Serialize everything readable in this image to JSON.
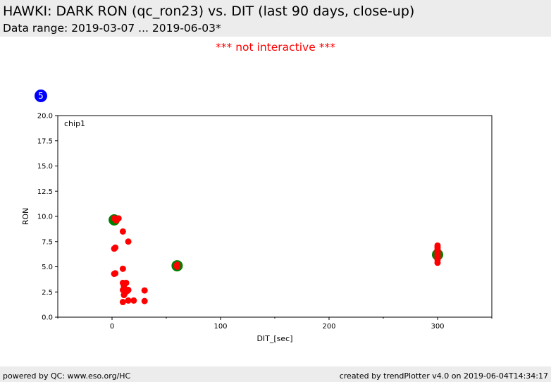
{
  "header": {
    "title": "HAWKI: DARK RON (qc_ron23) vs. DIT (last 90 days, close-up)",
    "subtitle": "Data range: 2019-03-07 ... 2019-06-03*"
  },
  "notice": "*** not interactive ***",
  "badge": "5",
  "footer": {
    "left": "powered by QC: www.eso.org/HC",
    "right": "created by trendPlotter v4.0 on 2019-06-04T14:34:17"
  },
  "colors": {
    "points": "#ff0000",
    "averages": "#008000",
    "badge": "#0000ff",
    "notice": "#ff0000"
  },
  "chart_data": {
    "type": "scatter",
    "annotation": "chip1",
    "xlabel": "DIT_[sec]",
    "ylabel": "RON",
    "xlim": [
      -50,
      350
    ],
    "ylim": [
      0,
      20
    ],
    "x_ticks": [
      0,
      100,
      200,
      300
    ],
    "x_ticks_minor": [
      -50,
      50,
      150,
      250,
      350
    ],
    "y_ticks": [
      0.0,
      2.5,
      5.0,
      7.5,
      10.0,
      12.5,
      15.0,
      17.5,
      20.0
    ],
    "grid": false,
    "series": [
      {
        "marker": "red-dot",
        "points": [
          {
            "x": 2,
            "y": 9.8
          },
          {
            "x": 4,
            "y": 9.6
          },
          {
            "x": 6,
            "y": 9.8
          },
          {
            "x": 2,
            "y": 6.8
          },
          {
            "x": 3,
            "y": 6.9
          },
          {
            "x": 2,
            "y": 4.3
          },
          {
            "x": 3,
            "y": 4.35
          },
          {
            "x": 10,
            "y": 8.5
          },
          {
            "x": 15,
            "y": 7.5
          },
          {
            "x": 10,
            "y": 4.8
          },
          {
            "x": 10,
            "y": 3.4
          },
          {
            "x": 13,
            "y": 3.4
          },
          {
            "x": 11,
            "y": 3.1
          },
          {
            "x": 10,
            "y": 2.7
          },
          {
            "x": 14,
            "y": 2.6
          },
          {
            "x": 15,
            "y": 2.7
          },
          {
            "x": 12,
            "y": 2.4
          },
          {
            "x": 11,
            "y": 2.2
          },
          {
            "x": 10,
            "y": 1.5
          },
          {
            "x": 15,
            "y": 1.65
          },
          {
            "x": 20,
            "y": 1.65
          },
          {
            "x": 30,
            "y": 2.65
          },
          {
            "x": 30,
            "y": 1.6
          },
          {
            "x": 60,
            "y": 5.2
          },
          {
            "x": 60,
            "y": 5.0
          },
          {
            "x": 300,
            "y": 7.1
          },
          {
            "x": 300,
            "y": 6.9
          },
          {
            "x": 300,
            "y": 6.7
          },
          {
            "x": 300,
            "y": 6.5
          },
          {
            "x": 300,
            "y": 6.3
          },
          {
            "x": 300,
            "y": 6.1
          },
          {
            "x": 300,
            "y": 5.9
          },
          {
            "x": 300,
            "y": 5.7
          },
          {
            "x": 300,
            "y": 5.4
          }
        ]
      },
      {
        "marker": "green-circle",
        "points": [
          {
            "x": 2,
            "y": 9.65
          },
          {
            "x": 60,
            "y": 5.1
          },
          {
            "x": 300,
            "y": 6.2
          }
        ]
      }
    ]
  }
}
